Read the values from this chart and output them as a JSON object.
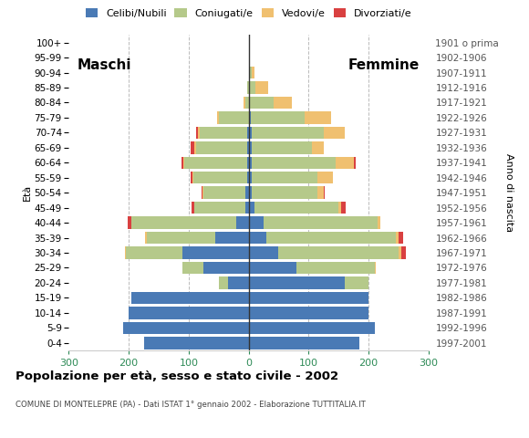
{
  "age_groups": [
    "0-4",
    "5-9",
    "10-14",
    "15-19",
    "20-24",
    "25-29",
    "30-34",
    "35-39",
    "40-44",
    "45-49",
    "50-54",
    "55-59",
    "60-64",
    "65-69",
    "70-74",
    "75-79",
    "80-84",
    "85-89",
    "90-94",
    "95-99",
    "100+"
  ],
  "birth_years": [
    "1997-2001",
    "1992-1996",
    "1987-1991",
    "1982-1986",
    "1977-1981",
    "1972-1976",
    "1967-1971",
    "1962-1966",
    "1957-1961",
    "1952-1956",
    "1947-1951",
    "1942-1946",
    "1937-1941",
    "1932-1936",
    "1927-1931",
    "1922-1926",
    "1917-1921",
    "1912-1916",
    "1907-1911",
    "1902-1906",
    "1901 o prima"
  ],
  "male_celibe": [
    175,
    210,
    200,
    195,
    35,
    75,
    110,
    55,
    20,
    5,
    5,
    2,
    2,
    2,
    2,
    0,
    0,
    0,
    0,
    0,
    0
  ],
  "male_coniugato": [
    0,
    0,
    0,
    0,
    15,
    35,
    95,
    115,
    175,
    85,
    70,
    90,
    105,
    85,
    80,
    50,
    5,
    2,
    0,
    0,
    0
  ],
  "male_vedovo": [
    0,
    0,
    0,
    0,
    0,
    0,
    2,
    3,
    0,
    0,
    2,
    2,
    2,
    3,
    3,
    3,
    3,
    0,
    0,
    0,
    0
  ],
  "male_divorziato": [
    0,
    0,
    0,
    0,
    0,
    0,
    0,
    0,
    7,
    5,
    2,
    2,
    3,
    7,
    2,
    0,
    0,
    0,
    0,
    0,
    0
  ],
  "female_nubile": [
    185,
    210,
    200,
    200,
    160,
    80,
    50,
    30,
    25,
    10,
    5,
    5,
    5,
    5,
    5,
    3,
    2,
    2,
    2,
    0,
    0
  ],
  "female_coniugata": [
    0,
    0,
    0,
    0,
    40,
    130,
    200,
    215,
    190,
    140,
    110,
    110,
    140,
    100,
    120,
    90,
    40,
    10,
    3,
    0,
    0
  ],
  "female_vedova": [
    0,
    0,
    0,
    0,
    0,
    2,
    5,
    5,
    5,
    5,
    10,
    25,
    30,
    20,
    35,
    45,
    30,
    20,
    5,
    0,
    0
  ],
  "female_divorziata": [
    0,
    0,
    0,
    0,
    0,
    0,
    7,
    7,
    0,
    7,
    2,
    0,
    3,
    0,
    0,
    0,
    0,
    0,
    0,
    0,
    0
  ],
  "color_celibe": "#4a7ab5",
  "color_coniugato": "#b5c98a",
  "color_vedovo": "#f0c070",
  "color_divorziato": "#d94040",
  "xlim": 300,
  "title": "Popolazione per età, sesso e stato civile - 2002",
  "subtitle": "COMUNE DI MONTELEPRE (PA) - Dati ISTAT 1° gennaio 2002 - Elaborazione TUTTITALIA.IT",
  "ylabel_left": "Età",
  "ylabel_right": "Anno di nascita",
  "label_maschi": "Maschi",
  "label_femmine": "Femmine",
  "legend_labels": [
    "Celibi/Nubili",
    "Coniugati/e",
    "Vedovi/e",
    "Divorziati/e"
  ],
  "background_color": "#ffffff",
  "grid_color": "#bbbbbb"
}
